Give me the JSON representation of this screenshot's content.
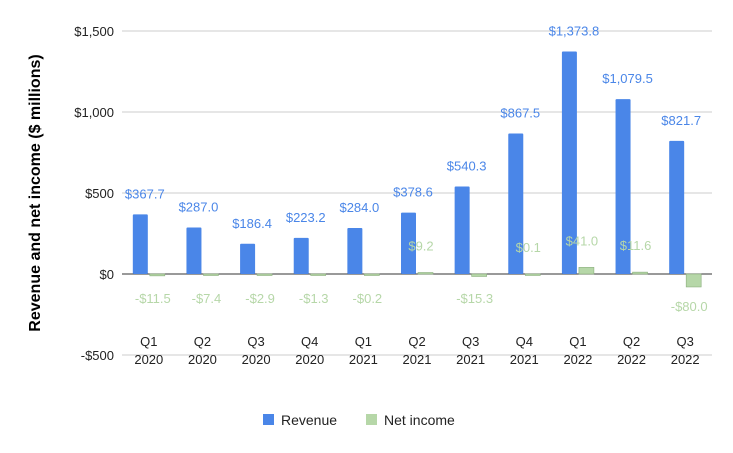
{
  "chart_data": {
    "type": "bar",
    "title": "",
    "xlabel": "",
    "ylabel": "Revenue and net income ($ millions)",
    "ylim": [
      -500,
      1500
    ],
    "yticks": [
      -500,
      0,
      500,
      1000,
      1500
    ],
    "ytick_labels": [
      "-$500",
      "$0",
      "$500",
      "$1,000",
      "$1,500"
    ],
    "grid": true,
    "legend_position": "bottom",
    "categories": [
      [
        "Q1",
        "2020"
      ],
      [
        "Q2",
        "2020"
      ],
      [
        "Q3",
        "2020"
      ],
      [
        "Q4",
        "2020"
      ],
      [
        "Q1",
        "2021"
      ],
      [
        "Q2",
        "2021"
      ],
      [
        "Q3",
        "2021"
      ],
      [
        "Q4",
        "2021"
      ],
      [
        "Q1",
        "2022"
      ],
      [
        "Q2",
        "2022"
      ],
      [
        "Q3",
        "2022"
      ]
    ],
    "series": [
      {
        "name": "Revenue",
        "color": "#4a86e8",
        "values": [
          367.7,
          287.0,
          186.4,
          223.2,
          284.0,
          378.6,
          540.3,
          867.5,
          1373.8,
          1079.5,
          821.7
        ],
        "labels": [
          "$367.7",
          "$287.0",
          "$186.4",
          "$223.2",
          "$284.0",
          "$378.6",
          "$540.3",
          "$867.5",
          "$1,373.8",
          "$1,079.5",
          "$821.7"
        ]
      },
      {
        "name": "Net income",
        "color": "#b6d7a8",
        "values": [
          -11.5,
          -7.4,
          -2.9,
          -1.3,
          -0.2,
          9.2,
          -15.3,
          0.1,
          41.0,
          11.6,
          -80.0
        ],
        "labels": [
          "-$11.5",
          "-$7.4",
          "-$2.9",
          "-$1.3",
          "-$0.2",
          "$9.2",
          "-$15.3",
          "$0.1",
          "$41.0",
          "$11.6",
          "-$80.0"
        ]
      }
    ]
  }
}
